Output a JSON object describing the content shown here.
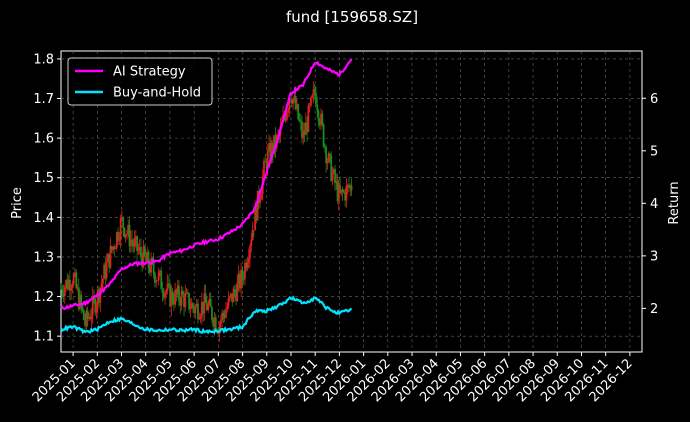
{
  "chart_data": {
    "type": "line",
    "title": "fund [159658.SZ]",
    "ylabel_left": "Price",
    "ylabel_right": "Return",
    "grid": true,
    "legend_position": "top-left",
    "x_ticks": [
      "2025-01",
      "2025-02",
      "2025-03",
      "2025-04",
      "2025-05",
      "2025-06",
      "2025-07",
      "2025-08",
      "2025-09",
      "2025-10",
      "2025-11",
      "2025-12",
      "2026-01",
      "2026-02",
      "2026-03",
      "2026-04",
      "2026-05",
      "2026-06",
      "2026-07",
      "2026-08",
      "2026-09",
      "2026-10",
      "2026-11",
      "2026-12"
    ],
    "y_left_ticks": [
      "1.1",
      "1.2",
      "1.3",
      "1.4",
      "1.5",
      "1.6",
      "1.7",
      "1.8"
    ],
    "y_left_range": [
      1.06,
      1.82
    ],
    "y_right_ticks": [
      "2",
      "3",
      "4",
      "5",
      "6"
    ],
    "y_right_range": [
      1.17,
      6.9
    ],
    "x_range_months": [
      0,
      24
    ],
    "colors": {
      "up": "#e0201c",
      "down": "#1f8a1f",
      "ai": "#ff00ff",
      "bh": "#00e5ff",
      "grid": "#666666"
    },
    "price_series": {
      "name": "159658.SZ",
      "x": [
        0,
        0.5,
        1,
        1.5,
        2,
        2.5,
        3,
        3.5,
        4,
        4.5,
        5,
        5.5,
        6,
        6.5,
        7,
        7.5,
        8,
        8.5,
        9,
        9.5,
        10,
        10.5,
        11,
        11.5,
        12
      ],
      "y": [
        1.22,
        1.25,
        1.13,
        1.2,
        1.3,
        1.39,
        1.33,
        1.29,
        1.25,
        1.2,
        1.2,
        1.17,
        1.18,
        1.13,
        1.19,
        1.25,
        1.4,
        1.55,
        1.6,
        1.72,
        1.6,
        1.72,
        1.55,
        1.45,
        1.48
      ]
    },
    "series": [
      {
        "name": "AI Strategy",
        "x": [
          0,
          0.5,
          1,
          1.5,
          2,
          2.5,
          3,
          3.5,
          4,
          4.5,
          5,
          5.5,
          6,
          6.5,
          7,
          7.5,
          8,
          8.5,
          9,
          9.5,
          10,
          10.5,
          11,
          11.5,
          12
        ],
        "y": [
          2.0,
          2.05,
          2.1,
          2.25,
          2.45,
          2.75,
          2.85,
          2.87,
          2.9,
          3.05,
          3.1,
          3.2,
          3.27,
          3.32,
          3.45,
          3.6,
          3.9,
          4.6,
          5.3,
          6.1,
          6.25,
          6.7,
          6.55,
          6.45,
          6.75
        ]
      },
      {
        "name": "Buy-and-Hold",
        "x": [
          0,
          0.5,
          1,
          1.5,
          2,
          2.5,
          3,
          3.5,
          4,
          4.5,
          5,
          5.5,
          6,
          6.5,
          7,
          7.5,
          8,
          8.5,
          9,
          9.5,
          10,
          10.5,
          11,
          11.5,
          12
        ],
        "y": [
          1.6,
          1.65,
          1.55,
          1.6,
          1.75,
          1.8,
          1.7,
          1.6,
          1.58,
          1.6,
          1.58,
          1.6,
          1.55,
          1.58,
          1.6,
          1.65,
          1.95,
          1.95,
          2.05,
          2.2,
          2.1,
          2.2,
          2.0,
          1.9,
          1.98
        ]
      }
    ]
  }
}
